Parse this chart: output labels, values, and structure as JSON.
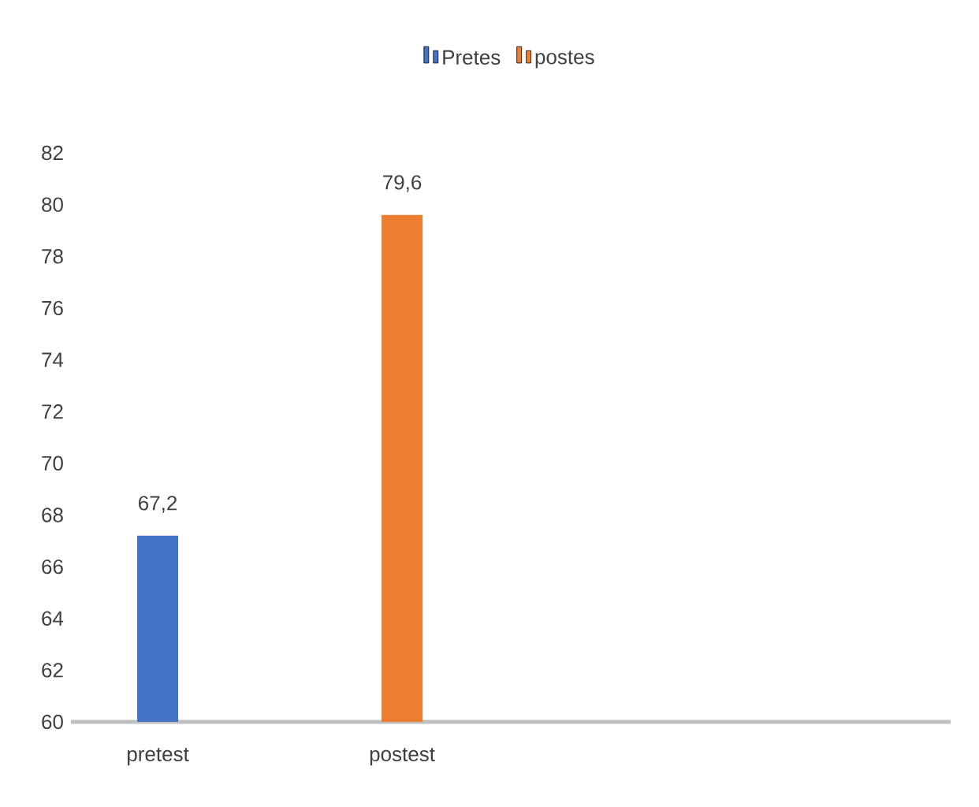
{
  "chart_data": {
    "type": "bar",
    "categories": [
      "pretest",
      "postest"
    ],
    "series": [
      {
        "name": "Pretes",
        "color": "#4472c4",
        "values": [
          67.2,
          null
        ],
        "value_labels": [
          "67,2",
          null
        ]
      },
      {
        "name": "postes",
        "color": "#ed7d31",
        "values": [
          null,
          79.6
        ],
        "value_labels": [
          null,
          "79,6"
        ]
      }
    ],
    "ylim": [
      60,
      82
    ],
    "yticks": [
      60,
      62,
      64,
      66,
      68,
      70,
      72,
      74,
      76,
      78,
      80,
      82
    ],
    "legend": "top",
    "grid": false
  }
}
